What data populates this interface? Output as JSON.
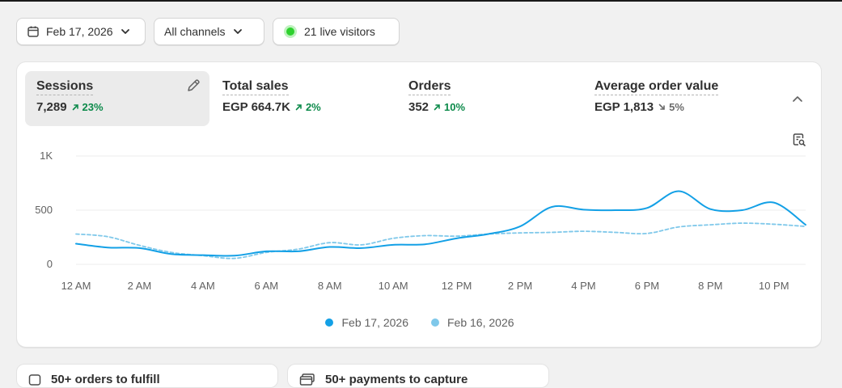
{
  "filters": {
    "date": {
      "label": "Feb 17, 2026",
      "icon": "calendar-icon"
    },
    "channels": {
      "label": "All channels",
      "icon": "chevron-down-icon"
    },
    "live": {
      "label": "21 live visitors",
      "dot_color": "#2ed12e"
    }
  },
  "metrics": [
    {
      "title": "Sessions",
      "value": "7,289",
      "delta": "23%",
      "direction": "up",
      "active": true
    },
    {
      "title": "Total sales",
      "value": "EGP 664.7K",
      "delta": "2%",
      "direction": "up",
      "active": false
    },
    {
      "title": "Orders",
      "value": "352",
      "delta": "10%",
      "direction": "up",
      "active": false
    },
    {
      "title": "Average order value",
      "value": "EGP 1,813",
      "delta": "5%",
      "direction": "down",
      "active": false
    }
  ],
  "colors": {
    "accent": "#13a0e6",
    "compare": "#7fc8ea",
    "positive": "#0c8a4a",
    "grid": "#ececec"
  },
  "chart_data": {
    "type": "line",
    "x": [
      "12 AM",
      "1 AM",
      "2 AM",
      "3 AM",
      "4 AM",
      "5 AM",
      "6 AM",
      "7 AM",
      "8 AM",
      "9 AM",
      "10 AM",
      "11 AM",
      "12 PM",
      "1 PM",
      "2 PM",
      "3 PM",
      "4 PM",
      "5 PM",
      "6 PM",
      "7 PM",
      "8 PM",
      "9 PM",
      "10 PM",
      "11 PM"
    ],
    "xticks": [
      "12 AM",
      "2 AM",
      "4 AM",
      "6 AM",
      "8 AM",
      "10 AM",
      "12 PM",
      "2 PM",
      "4 PM",
      "6 PM",
      "8 PM",
      "10 PM"
    ],
    "yticks": [
      "1K",
      "500",
      "0"
    ],
    "ylim": [
      0,
      1000
    ],
    "series": [
      {
        "name": "Feb 17, 2026",
        "style": "solid",
        "values": [
          190,
          155,
          150,
          95,
          85,
          80,
          120,
          120,
          160,
          150,
          180,
          185,
          240,
          280,
          350,
          530,
          505,
          500,
          520,
          675,
          510,
          500,
          570,
          365
        ]
      },
      {
        "name": "Feb 16, 2026",
        "style": "dashed",
        "values": [
          280,
          255,
          175,
          110,
          80,
          55,
          110,
          140,
          200,
          180,
          240,
          265,
          260,
          280,
          290,
          295,
          305,
          295,
          285,
          345,
          365,
          380,
          370,
          350
        ]
      }
    ]
  },
  "bottom_cards": [
    {
      "label": "50+ orders to fulfill",
      "icon": "order-icon"
    },
    {
      "label": "50+ payments to capture",
      "icon": "payment-icon"
    }
  ]
}
